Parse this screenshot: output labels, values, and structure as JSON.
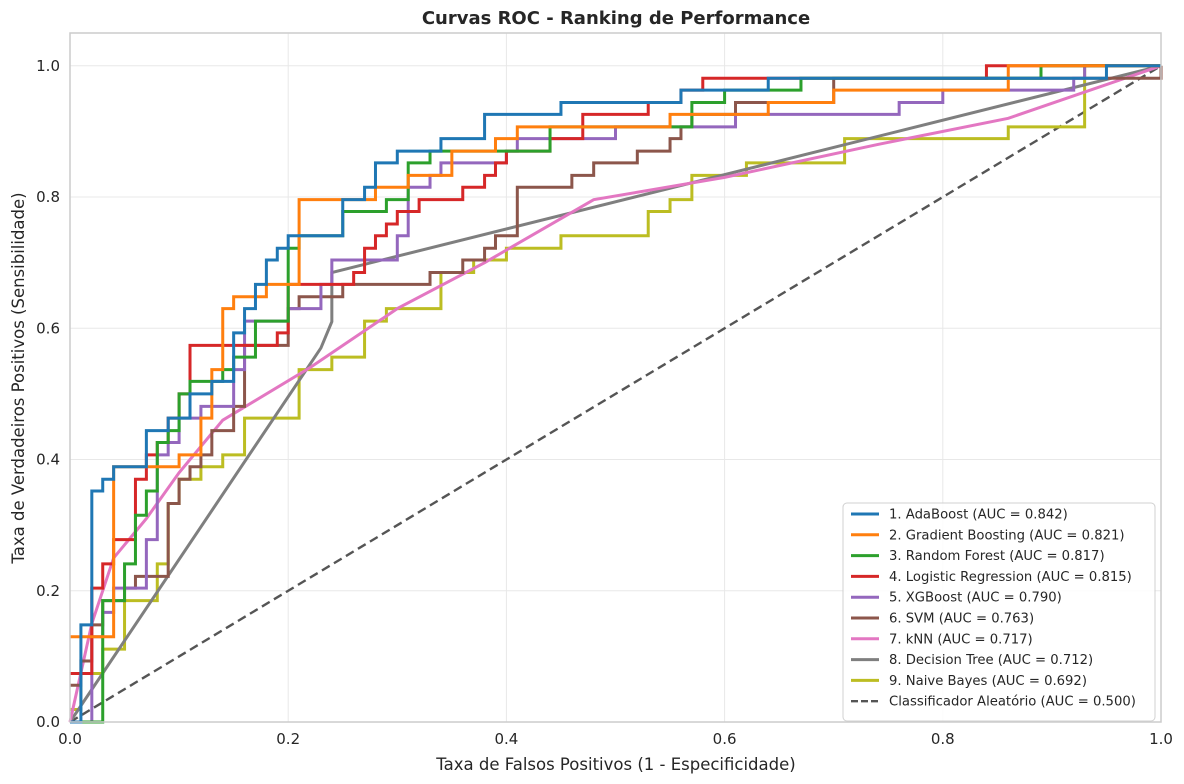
{
  "chart_data": {
    "type": "line",
    "title": "Curvas ROC - Ranking de Performance",
    "xlabel": "Taxa de Falsos Positivos (1 - Especificidade)",
    "ylabel": "Taxa de Verdadeiros Positivos (Sensibilidade)",
    "xlim": [
      0,
      1
    ],
    "ylim": [
      0,
      1.05
    ],
    "xticks": [
      "0.0",
      "0.2",
      "0.4",
      "0.6",
      "0.8",
      "1.0"
    ],
    "yticks": [
      "0.0",
      "0.2",
      "0.4",
      "0.6",
      "0.8",
      "1.0"
    ],
    "grid": true,
    "legend_position": "bottom-right",
    "series": [
      {
        "name": "1. AdaBoost (AUC = 0.842)",
        "color": "#1f77b4",
        "step": true,
        "x": [
          0,
          0.01,
          0.02,
          0.03,
          0.04,
          0.07,
          0.09,
          0.11,
          0.13,
          0.15,
          0.16,
          0.17,
          0.18,
          0.19,
          0.2,
          0.25,
          0.26,
          0.27,
          0.28,
          0.3,
          0.34,
          0.38,
          0.45,
          0.56,
          0.64,
          0.95,
          1.0
        ],
        "y": [
          0,
          0.148,
          0.352,
          0.37,
          0.389,
          0.444,
          0.463,
          0.5,
          0.519,
          0.593,
          0.63,
          0.667,
          0.704,
          0.722,
          0.741,
          0.796,
          0.796,
          0.815,
          0.852,
          0.87,
          0.889,
          0.926,
          0.944,
          0.963,
          0.981,
          1.0,
          1.0
        ]
      },
      {
        "name": "2. Gradient Boosting (AUC = 0.821)",
        "color": "#ff7f0e",
        "step": true,
        "x": [
          0,
          0.04,
          0.08,
          0.1,
          0.12,
          0.13,
          0.14,
          0.15,
          0.18,
          0.2,
          0.21,
          0.28,
          0.31,
          0.35,
          0.39,
          0.41,
          0.55,
          0.64,
          0.7,
          0.86,
          1.0
        ],
        "y": [
          0.13,
          0.389,
          0.389,
          0.407,
          0.463,
          0.537,
          0.63,
          0.648,
          0.667,
          0.667,
          0.796,
          0.815,
          0.833,
          0.87,
          0.889,
          0.907,
          0.926,
          0.944,
          0.963,
          1.0,
          1.0
        ]
      },
      {
        "name": "3. Random Forest (AUC = 0.817)",
        "color": "#2ca02c",
        "step": true,
        "x": [
          0,
          0.03,
          0.05,
          0.06,
          0.07,
          0.08,
          0.09,
          0.1,
          0.11,
          0.14,
          0.15,
          0.17,
          0.2,
          0.21,
          0.25,
          0.29,
          0.31,
          0.33,
          0.35,
          0.44,
          0.57,
          0.6,
          0.67,
          0.89,
          1.0
        ],
        "y": [
          0,
          0.185,
          0.241,
          0.315,
          0.352,
          0.426,
          0.444,
          0.5,
          0.519,
          0.537,
          0.556,
          0.611,
          0.722,
          0.741,
          0.778,
          0.796,
          0.852,
          0.87,
          0.87,
          0.907,
          0.944,
          0.963,
          0.981,
          1.0,
          1.0
        ]
      },
      {
        "name": "4. Logistic Regression (AUC = 0.815)",
        "color": "#d62728",
        "step": true,
        "x": [
          0,
          0.02,
          0.03,
          0.04,
          0.06,
          0.07,
          0.08,
          0.09,
          0.1,
          0.11,
          0.15,
          0.19,
          0.2,
          0.26,
          0.27,
          0.28,
          0.29,
          0.3,
          0.32,
          0.36,
          0.38,
          0.39,
          0.4,
          0.44,
          0.47,
          0.53,
          0.56,
          0.58,
          0.84,
          1.0
        ],
        "y": [
          0.074,
          0.204,
          0.241,
          0.278,
          0.37,
          0.407,
          0.426,
          0.463,
          0.5,
          0.574,
          0.574,
          0.593,
          0.667,
          0.685,
          0.722,
          0.741,
          0.759,
          0.778,
          0.796,
          0.815,
          0.833,
          0.852,
          0.87,
          0.889,
          0.926,
          0.944,
          0.963,
          0.981,
          1.0,
          1.0
        ]
      },
      {
        "name": "5. XGBoost (AUC = 0.790)",
        "color": "#9467bd",
        "step": true,
        "x": [
          0,
          0.02,
          0.03,
          0.04,
          0.07,
          0.08,
          0.09,
          0.1,
          0.12,
          0.15,
          0.16,
          0.2,
          0.23,
          0.24,
          0.3,
          0.31,
          0.33,
          0.34,
          0.39,
          0.4,
          0.41,
          0.5,
          0.56,
          0.61,
          0.76,
          0.8,
          0.92,
          0.93,
          1.0
        ],
        "y": [
          0,
          0.13,
          0.167,
          0.204,
          0.278,
          0.407,
          0.426,
          0.463,
          0.481,
          0.537,
          0.611,
          0.63,
          0.667,
          0.704,
          0.741,
          0.815,
          0.833,
          0.852,
          0.852,
          0.87,
          0.889,
          0.907,
          0.907,
          0.926,
          0.944,
          0.963,
          0.981,
          1.0,
          1.0
        ]
      },
      {
        "name": "6. SVM (AUC = 0.763)",
        "color": "#8c564b",
        "step": true,
        "x": [
          0,
          0.01,
          0.02,
          0.03,
          0.05,
          0.06,
          0.07,
          0.09,
          0.1,
          0.11,
          0.12,
          0.13,
          0.15,
          0.16,
          0.2,
          0.21,
          0.22,
          0.25,
          0.33,
          0.36,
          0.38,
          0.39,
          0.41,
          0.43,
          0.46,
          0.48,
          0.5,
          0.52,
          0.55,
          0.56,
          0.57,
          0.59,
          0.61,
          0.7,
          0.82,
          1.0
        ],
        "y": [
          0.056,
          0.093,
          0.148,
          0.185,
          0.204,
          0.222,
          0.222,
          0.333,
          0.37,
          0.389,
          0.407,
          0.444,
          0.481,
          0.574,
          0.63,
          0.648,
          0.648,
          0.667,
          0.685,
          0.704,
          0.722,
          0.741,
          0.815,
          0.815,
          0.833,
          0.852,
          0.852,
          0.87,
          0.889,
          0.907,
          0.926,
          0.926,
          0.944,
          0.981,
          0.981,
          1.0
        ]
      },
      {
        "name": "7. kNN (AUC = 0.717)",
        "color": "#e377c2",
        "step": false,
        "x": [
          0,
          0.02,
          0.04,
          0.07,
          0.1,
          0.14,
          0.22,
          0.3,
          0.38,
          0.48,
          0.6,
          0.74,
          0.86,
          1.0
        ],
        "y": [
          0,
          0.15,
          0.25,
          0.31,
          0.38,
          0.46,
          0.54,
          0.63,
          0.7,
          0.796,
          0.83,
          0.88,
          0.92,
          1.0
        ]
      },
      {
        "name": "8. Decision Tree (AUC = 0.712)",
        "color": "#7f7f7f",
        "step": false,
        "x": [
          0,
          0.23,
          0.24,
          0.24,
          1.0
        ],
        "y": [
          0,
          0.57,
          0.61,
          0.685,
          1.0
        ]
      },
      {
        "name": "9. Naive Bayes (AUC = 0.692)",
        "color": "#bcbd22",
        "step": true,
        "x": [
          0,
          0.01,
          0.03,
          0.05,
          0.08,
          0.09,
          0.1,
          0.12,
          0.14,
          0.16,
          0.21,
          0.24,
          0.27,
          0.29,
          0.34,
          0.35,
          0.37,
          0.4,
          0.45,
          0.53,
          0.55,
          0.57,
          0.62,
          0.71,
          0.86,
          0.93,
          1.0
        ],
        "y": [
          0.019,
          0.074,
          0.111,
          0.185,
          0.241,
          0.333,
          0.37,
          0.389,
          0.407,
          0.463,
          0.537,
          0.556,
          0.611,
          0.63,
          0.685,
          0.685,
          0.704,
          0.722,
          0.741,
          0.778,
          0.796,
          0.833,
          0.852,
          0.889,
          0.907,
          1.0,
          1.0
        ]
      },
      {
        "name": "Classificador Aleatório (AUC = 0.500)",
        "color": "#555555",
        "step": false,
        "dashed": true,
        "x": [
          0,
          1
        ],
        "y": [
          0,
          1
        ]
      }
    ]
  }
}
